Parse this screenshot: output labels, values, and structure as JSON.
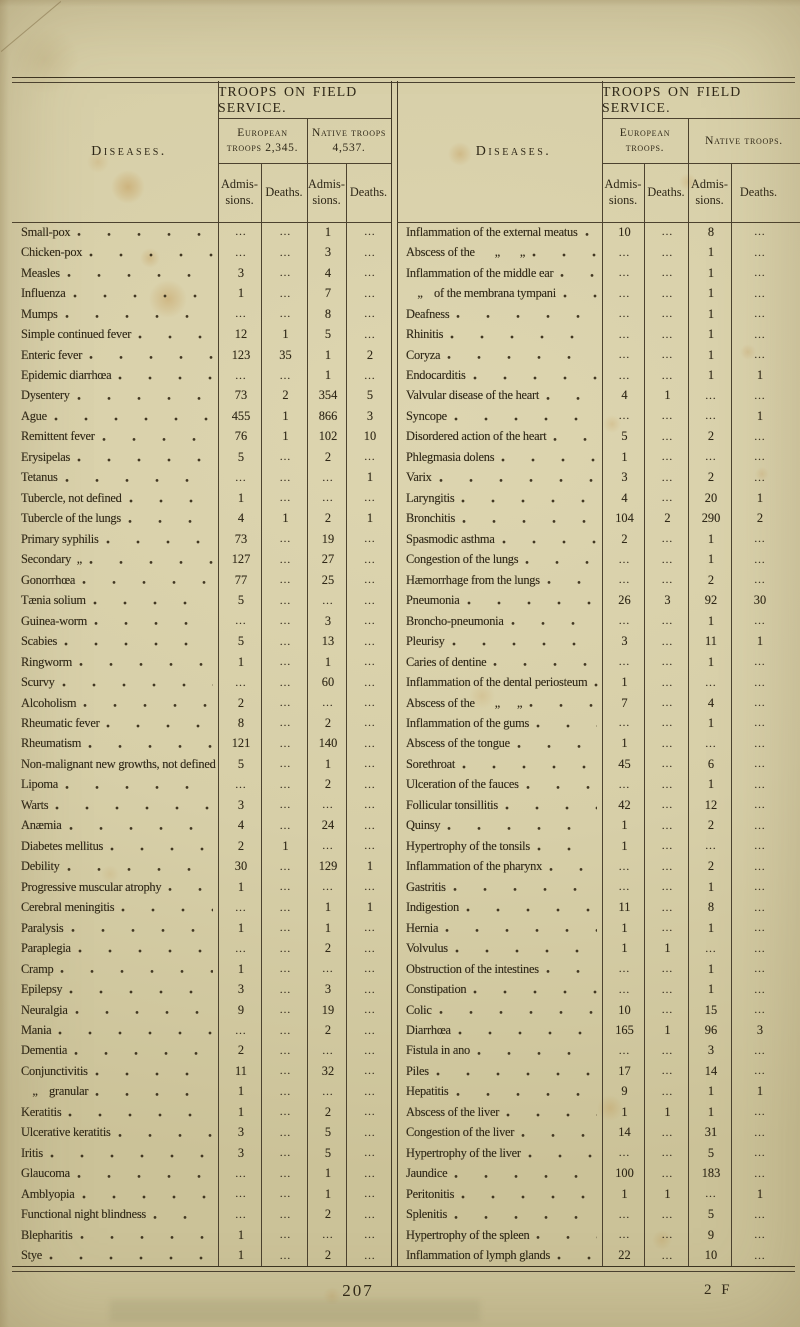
{
  "page": {
    "page_number": "207",
    "signature_mark": "2 F"
  },
  "left_table": {
    "title": "TROOPS ON FIELD SERVICE.",
    "diseases_header": "Diseases.",
    "group_european": "European troops 2,345.",
    "group_native": "Native troops 4,537.",
    "col_headers": [
      "Admis- sions.",
      "Deaths.",
      "Admis- sions.",
      "Deaths."
    ],
    "rows": [
      {
        "disease": "Small-pox",
        "values": [
          "...",
          "...",
          "1",
          "..."
        ]
      },
      {
        "disease": "Chicken-pox",
        "values": [
          "...",
          "...",
          "3",
          "..."
        ]
      },
      {
        "disease": "Measles",
        "values": [
          "3",
          "...",
          "4",
          "..."
        ]
      },
      {
        "disease": "Influenza",
        "values": [
          "1",
          "...",
          "7",
          "..."
        ]
      },
      {
        "disease": "Mumps",
        "values": [
          "...",
          "...",
          "8",
          "..."
        ]
      },
      {
        "disease": "Simple continued fever",
        "values": [
          "12",
          "1",
          "5",
          "..."
        ]
      },
      {
        "disease": "Enteric fever",
        "values": [
          "123",
          "35",
          "1",
          "2"
        ]
      },
      {
        "disease": "Epidemic diarrhœa",
        "values": [
          "...",
          "...",
          "1",
          "..."
        ]
      },
      {
        "disease": "Dysentery",
        "values": [
          "73",
          "2",
          "354",
          "5"
        ]
      },
      {
        "disease": "Ague",
        "values": [
          "455",
          "1",
          "866",
          "3"
        ]
      },
      {
        "disease": "Remittent fever",
        "values": [
          "76",
          "1",
          "102",
          "10"
        ]
      },
      {
        "disease": "Erysipelas",
        "values": [
          "5",
          "...",
          "2",
          "..."
        ]
      },
      {
        "disease": "Tetanus",
        "values": [
          "...",
          "...",
          "...",
          "1"
        ]
      },
      {
        "disease": "Tubercle, not defined",
        "values": [
          "1",
          "...",
          "...",
          "..."
        ]
      },
      {
        "disease": "Tubercle of the lungs",
        "values": [
          "4",
          "1",
          "2",
          "1"
        ]
      },
      {
        "disease": "Primary syphilis",
        "values": [
          "73",
          "...",
          "19",
          "..."
        ]
      },
      {
        "disease": "Secondary  „",
        "values": [
          "127",
          "...",
          "27",
          "..."
        ]
      },
      {
        "disease": "Gonorrhœa",
        "values": [
          "77",
          "...",
          "25",
          "..."
        ]
      },
      {
        "disease": "Tænia solium",
        "values": [
          "5",
          "...",
          "...",
          "..."
        ]
      },
      {
        "disease": "Guinea-worm",
        "values": [
          "...",
          "...",
          "3",
          "..."
        ]
      },
      {
        "disease": "Scabies",
        "values": [
          "5",
          "...",
          "13",
          "..."
        ]
      },
      {
        "disease": "Ringworm",
        "values": [
          "1",
          "...",
          "1",
          "..."
        ]
      },
      {
        "disease": "Scurvy",
        "values": [
          "...",
          "...",
          "60",
          "..."
        ]
      },
      {
        "disease": "Alcoholism",
        "values": [
          "2",
          "...",
          "...",
          "..."
        ]
      },
      {
        "disease": "Rheumatic fever",
        "values": [
          "8",
          "...",
          "2",
          "..."
        ]
      },
      {
        "disease": "Rheumatism",
        "values": [
          "121",
          "...",
          "140",
          "..."
        ]
      },
      {
        "disease": "Non-malignant new growths, not defined",
        "values": [
          "5",
          "...",
          "1",
          "..."
        ]
      },
      {
        "disease": "Lipoma",
        "values": [
          "...",
          "...",
          "2",
          "..."
        ]
      },
      {
        "disease": "Warts",
        "values": [
          "3",
          "...",
          "...",
          "..."
        ]
      },
      {
        "disease": "Anæmia",
        "values": [
          "4",
          "...",
          "24",
          "..."
        ]
      },
      {
        "disease": "Diabetes mellitus",
        "values": [
          "2",
          "1",
          "...",
          "..."
        ]
      },
      {
        "disease": "Debility",
        "values": [
          "30",
          "...",
          "129",
          "1"
        ]
      },
      {
        "disease": "Progressive muscular atrophy",
        "values": [
          "1",
          "...",
          "...",
          "..."
        ]
      },
      {
        "disease": "Cerebral meningitis",
        "values": [
          "...",
          "...",
          "1",
          "1"
        ]
      },
      {
        "disease": "Paralysis",
        "values": [
          "1",
          "...",
          "1",
          "..."
        ]
      },
      {
        "disease": "Paraplegia",
        "values": [
          "...",
          "...",
          "2",
          "..."
        ]
      },
      {
        "disease": "Cramp",
        "values": [
          "1",
          "...",
          "...",
          "..."
        ]
      },
      {
        "disease": "Epilepsy",
        "values": [
          "3",
          "...",
          "3",
          "..."
        ]
      },
      {
        "disease": "Neuralgia",
        "values": [
          "9",
          "...",
          "19",
          "..."
        ]
      },
      {
        "disease": "Mania",
        "values": [
          "...",
          "...",
          "2",
          "..."
        ]
      },
      {
        "disease": "Dementia",
        "values": [
          "2",
          "...",
          "...",
          "..."
        ]
      },
      {
        "disease": "Conjunctivitis",
        "values": [
          "11",
          "...",
          "32",
          "..."
        ]
      },
      {
        "disease": "    „    granular",
        "values": [
          "1",
          "...",
          "...",
          "..."
        ]
      },
      {
        "disease": "Keratitis",
        "values": [
          "1",
          "...",
          "2",
          "..."
        ]
      },
      {
        "disease": "Ulcerative keratitis",
        "values": [
          "3",
          "...",
          "5",
          "..."
        ]
      },
      {
        "disease": "Iritis",
        "values": [
          "3",
          "...",
          "5",
          "..."
        ]
      },
      {
        "disease": "Glaucoma",
        "values": [
          "...",
          "...",
          "1",
          "..."
        ]
      },
      {
        "disease": "Amblyopia",
        "values": [
          "...",
          "...",
          "1",
          "..."
        ]
      },
      {
        "disease": "Functional night blindness",
        "values": [
          "...",
          "...",
          "2",
          "..."
        ]
      },
      {
        "disease": "Blepharitis",
        "values": [
          "1",
          "...",
          "...",
          "..."
        ]
      },
      {
        "disease": "Stye",
        "values": [
          "1",
          "...",
          "2",
          "..."
        ]
      }
    ]
  },
  "right_table": {
    "title": "TROOPS ON FIELD SERVICE.",
    "diseases_header": "Diseases.",
    "group_european": "European troops.",
    "group_native": "Native troops.",
    "col_headers": [
      "Admis- sions.",
      "Deaths.",
      "Admis- sions.",
      "Deaths."
    ],
    "rows": [
      {
        "disease": "Inflammation of the external meatus",
        "values": [
          "10",
          "...",
          "8",
          "..."
        ]
      },
      {
        "disease": "Abscess of the       „       „",
        "values": [
          "...",
          "...",
          "1",
          "..."
        ]
      },
      {
        "disease": "Inflammation of the middle ear",
        "values": [
          "...",
          "...",
          "1",
          "..."
        ]
      },
      {
        "disease": "    „    of the membrana tympani",
        "values": [
          "...",
          "...",
          "1",
          "..."
        ]
      },
      {
        "disease": "Deafness",
        "values": [
          "...",
          "...",
          "1",
          "..."
        ]
      },
      {
        "disease": "Rhinitis",
        "values": [
          "...",
          "...",
          "1",
          "..."
        ]
      },
      {
        "disease": "Coryza",
        "values": [
          "...",
          "...",
          "1",
          "..."
        ]
      },
      {
        "disease": "Endocarditis",
        "values": [
          "...",
          "...",
          "1",
          "1"
        ]
      },
      {
        "disease": "Valvular disease of the heart",
        "values": [
          "4",
          "1",
          "...",
          "..."
        ]
      },
      {
        "disease": "Syncope",
        "values": [
          "...",
          "...",
          "...",
          "1"
        ]
      },
      {
        "disease": "Disordered action of the heart",
        "values": [
          "5",
          "...",
          "2",
          "..."
        ]
      },
      {
        "disease": "Phlegmasia dolens",
        "values": [
          "1",
          "...",
          "...",
          "..."
        ]
      },
      {
        "disease": "Varix",
        "values": [
          "3",
          "...",
          "2",
          "..."
        ]
      },
      {
        "disease": "Laryngitis",
        "values": [
          "4",
          "...",
          "20",
          "1"
        ]
      },
      {
        "disease": "Bronchitis",
        "values": [
          "104",
          "2",
          "290",
          "2"
        ]
      },
      {
        "disease": "Spasmodic asthma",
        "values": [
          "2",
          "...",
          "1",
          "..."
        ]
      },
      {
        "disease": "Congestion of the lungs",
        "values": [
          "...",
          "...",
          "1",
          "..."
        ]
      },
      {
        "disease": "Hæmorrhage from the lungs",
        "values": [
          "...",
          "...",
          "2",
          "..."
        ]
      },
      {
        "disease": "Pneumonia",
        "values": [
          "26",
          "3",
          "92",
          "30"
        ]
      },
      {
        "disease": "Broncho-pneumonia",
        "values": [
          "...",
          "...",
          "1",
          "..."
        ]
      },
      {
        "disease": "Pleurisy",
        "values": [
          "3",
          "...",
          "11",
          "1"
        ]
      },
      {
        "disease": "Caries of dentine",
        "values": [
          "...",
          "...",
          "1",
          "..."
        ]
      },
      {
        "disease": "Inflammation of the dental periosteum",
        "values": [
          "1",
          "...",
          "...",
          "..."
        ]
      },
      {
        "disease": "Abscess of the       „      „",
        "values": [
          "7",
          "...",
          "4",
          "..."
        ]
      },
      {
        "disease": "Inflammation of the gums",
        "values": [
          "...",
          "...",
          "1",
          "..."
        ]
      },
      {
        "disease": "Abscess of the tongue",
        "values": [
          "1",
          "...",
          "...",
          "..."
        ]
      },
      {
        "disease": "Sorethroat",
        "values": [
          "45",
          "...",
          "6",
          "..."
        ]
      },
      {
        "disease": "Ulceration of the fauces",
        "values": [
          "...",
          "...",
          "1",
          "..."
        ]
      },
      {
        "disease": "Follicular tonsillitis",
        "values": [
          "42",
          "...",
          "12",
          "..."
        ]
      },
      {
        "disease": "Quinsy",
        "values": [
          "1",
          "...",
          "2",
          "..."
        ]
      },
      {
        "disease": "Hypertrophy of the tonsils",
        "values": [
          "1",
          "...",
          "...",
          "..."
        ]
      },
      {
        "disease": "Inflammation of the pharynx",
        "values": [
          "...",
          "...",
          "2",
          "..."
        ]
      },
      {
        "disease": "Gastritis",
        "values": [
          "...",
          "...",
          "1",
          "..."
        ]
      },
      {
        "disease": "Indigestion",
        "values": [
          "11",
          "...",
          "8",
          "..."
        ]
      },
      {
        "disease": "Hernia",
        "values": [
          "1",
          "...",
          "1",
          "..."
        ]
      },
      {
        "disease": "Volvulus",
        "values": [
          "1",
          "1",
          "...",
          "..."
        ]
      },
      {
        "disease": "Obstruction of the intestines",
        "values": [
          "...",
          "...",
          "1",
          "..."
        ]
      },
      {
        "disease": "Constipation",
        "values": [
          "...",
          "...",
          "1",
          "..."
        ]
      },
      {
        "disease": "Colic",
        "values": [
          "10",
          "...",
          "15",
          "..."
        ]
      },
      {
        "disease": "Diarrhœa",
        "values": [
          "165",
          "1",
          "96",
          "3"
        ]
      },
      {
        "disease": "Fistula in ano",
        "values": [
          "...",
          "...",
          "3",
          "..."
        ]
      },
      {
        "disease": "Piles",
        "values": [
          "17",
          "...",
          "14",
          "..."
        ]
      },
      {
        "disease": "Hepatitis",
        "values": [
          "9",
          "...",
          "1",
          "1"
        ]
      },
      {
        "disease": "Abscess of the liver",
        "values": [
          "1",
          "1",
          "1",
          "..."
        ]
      },
      {
        "disease": "Congestion of the liver",
        "values": [
          "14",
          "...",
          "31",
          "..."
        ]
      },
      {
        "disease": "Hypertrophy of the liver",
        "values": [
          "...",
          "...",
          "5",
          "..."
        ]
      },
      {
        "disease": "Jaundice",
        "values": [
          "100",
          "...",
          "183",
          "..."
        ]
      },
      {
        "disease": "Peritonitis",
        "values": [
          "1",
          "1",
          "...",
          "1"
        ]
      },
      {
        "disease": "Splenitis",
        "values": [
          "...",
          "...",
          "5",
          "..."
        ]
      },
      {
        "disease": "Hypertrophy of the spleen",
        "values": [
          "...",
          "...",
          "9",
          "..."
        ]
      },
      {
        "disease": "Inflammation of lymph glands",
        "values": [
          "22",
          "...",
          "10",
          "..."
        ]
      }
    ]
  }
}
